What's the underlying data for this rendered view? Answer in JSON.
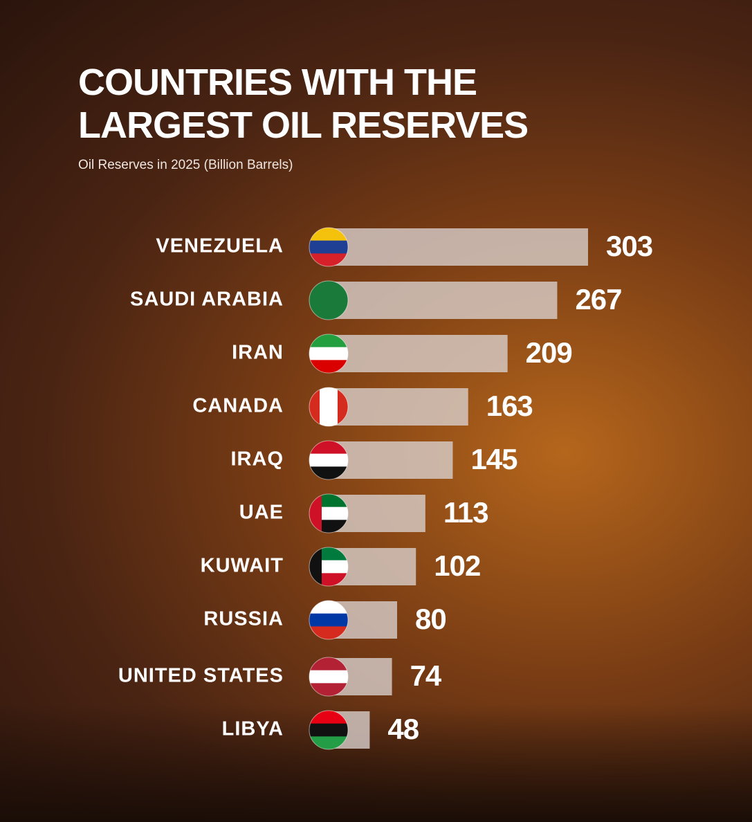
{
  "chart_data": {
    "type": "bar",
    "orientation": "horizontal",
    "title": "COUNTRIES WITH THE LARGEST OIL RESERVES",
    "subtitle": "Oil Reserves in 2025 (Billion Barrels)",
    "categories": [
      "VENEZUELA",
      "SAUDI ARABIA",
      "IRAN",
      "CANADA",
      "IRAQ",
      "UAE",
      "KUWAIT",
      "RUSSIA",
      "UNITED STATES",
      "LIBYA"
    ],
    "values": [
      303,
      267,
      209,
      163,
      145,
      113,
      102,
      80,
      74,
      48
    ],
    "color": "#d8ceca"
  }
}
